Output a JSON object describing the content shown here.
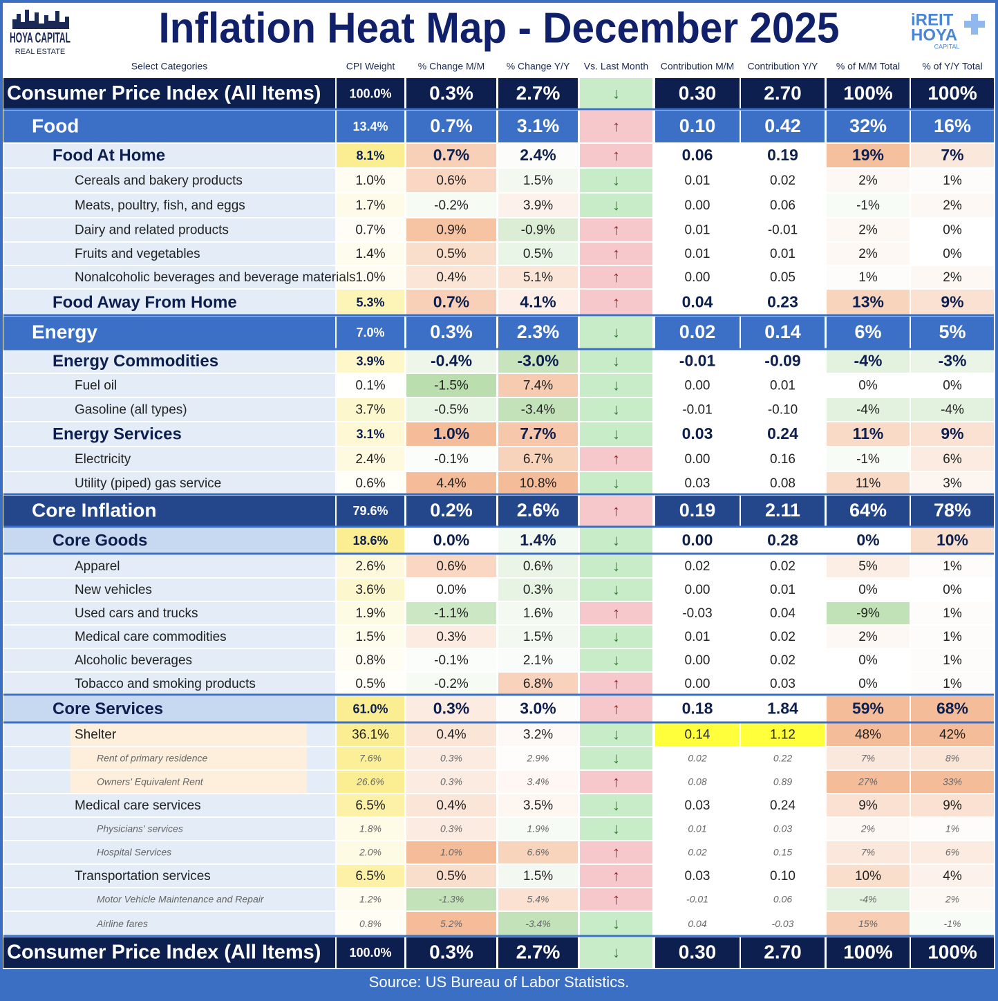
{
  "header": {
    "title": "Inflation Heat Map - December 2025",
    "logo_left": [
      "HOYA CAPITAL",
      "REAL ESTATE"
    ],
    "logo_right": [
      "iREIT",
      "HOYA",
      "CAPITAL"
    ]
  },
  "table": {
    "columns": [
      "Select Categories",
      "CPI Weight",
      "% Change M/M",
      "% Change Y/Y",
      "Vs. Last Month",
      "Contribution M/M",
      "Contribution Y/Y",
      "% of M/M Total",
      "% of Y/Y Total"
    ],
    "rows": [
      {
        "label": "Consumer Price Index (All Items)",
        "cells": [
          "100.0%",
          "0.3%",
          "2.7%",
          "↓",
          "0.30",
          "2.70",
          "100%",
          "100%"
        ]
      },
      {
        "label": "Food",
        "cells": [
          "13.4%",
          "0.7%",
          "3.1%",
          "↑",
          "0.10",
          "0.42",
          "32%",
          "16%"
        ]
      },
      {
        "label": "Food At Home",
        "cells": [
          "8.1%",
          "0.7%",
          "2.4%",
          "↑",
          "0.06",
          "0.19",
          "19%",
          "7%"
        ]
      },
      {
        "label": "Cereals and bakery products",
        "cells": [
          "1.0%",
          "0.6%",
          "1.5%",
          "↓",
          "0.01",
          "0.02",
          "2%",
          "1%"
        ]
      },
      {
        "label": "Meats, poultry, fish, and eggs",
        "cells": [
          "1.7%",
          "-0.2%",
          "3.9%",
          "↓",
          "0.00",
          "0.06",
          "-1%",
          "2%"
        ]
      },
      {
        "label": "Dairy and related products",
        "cells": [
          "0.7%",
          "0.9%",
          "-0.9%",
          "↑",
          "0.01",
          "-0.01",
          "2%",
          "0%"
        ]
      },
      {
        "label": "Fruits and vegetables",
        "cells": [
          "1.4%",
          "0.5%",
          "0.5%",
          "↑",
          "0.01",
          "0.01",
          "2%",
          "0%"
        ]
      },
      {
        "label": "Nonalcoholic beverages and beverage materials",
        "cells": [
          "1.0%",
          "0.4%",
          "5.1%",
          "↑",
          "0.00",
          "0.05",
          "1%",
          "2%"
        ]
      },
      {
        "label": "Food Away From Home",
        "cells": [
          "5.3%",
          "0.7%",
          "4.1%",
          "↑",
          "0.04",
          "0.23",
          "13%",
          "9%"
        ]
      },
      {
        "label": "Energy",
        "cells": [
          "7.0%",
          "0.3%",
          "2.3%",
          "↓",
          "0.02",
          "0.14",
          "6%",
          "5%"
        ]
      },
      {
        "label": "Energy Commodities",
        "cells": [
          "3.9%",
          "-0.4%",
          "-3.0%",
          "↓",
          "-0.01",
          "-0.09",
          "-4%",
          "-3%"
        ]
      },
      {
        "label": "Fuel oil",
        "cells": [
          "0.1%",
          "-1.5%",
          "7.4%",
          "↓",
          "0.00",
          "0.01",
          "0%",
          "0%"
        ]
      },
      {
        "label": "Gasoline (all types)",
        "cells": [
          "3.7%",
          "-0.5%",
          "-3.4%",
          "↓",
          "-0.01",
          "-0.10",
          "-4%",
          "-4%"
        ]
      },
      {
        "label": "Energy Services",
        "cells": [
          "3.1%",
          "1.0%",
          "7.7%",
          "↓",
          "0.03",
          "0.24",
          "11%",
          "9%"
        ]
      },
      {
        "label": "Electricity",
        "cells": [
          "2.4%",
          "-0.1%",
          "6.7%",
          "↑",
          "0.00",
          "0.16",
          "-1%",
          "6%"
        ]
      },
      {
        "label": "Utility (piped) gas service",
        "cells": [
          "0.6%",
          "4.4%",
          "10.8%",
          "↓",
          "0.03",
          "0.08",
          "11%",
          "3%"
        ]
      },
      {
        "label": "Core Inflation",
        "cells": [
          "79.6%",
          "0.2%",
          "2.6%",
          "↑",
          "0.19",
          "2.11",
          "64%",
          "78%"
        ]
      },
      {
        "label": "Core Goods",
        "cells": [
          "18.6%",
          "0.0%",
          "1.4%",
          "↓",
          "0.00",
          "0.28",
          "0%",
          "10%"
        ]
      },
      {
        "label": "Apparel",
        "cells": [
          "2.6%",
          "0.6%",
          "0.6%",
          "↓",
          "0.02",
          "0.02",
          "5%",
          "1%"
        ]
      },
      {
        "label": "New vehicles",
        "cells": [
          "3.6%",
          "0.0%",
          "0.3%",
          "↓",
          "0.00",
          "0.01",
          "0%",
          "0%"
        ]
      },
      {
        "label": "Used cars and trucks",
        "cells": [
          "1.9%",
          "-1.1%",
          "1.6%",
          "↑",
          "-0.03",
          "0.04",
          "-9%",
          "1%"
        ]
      },
      {
        "label": "Medical care commodities",
        "cells": [
          "1.5%",
          "0.3%",
          "1.5%",
          "↓",
          "0.01",
          "0.02",
          "2%",
          "1%"
        ]
      },
      {
        "label": "Alcoholic beverages",
        "cells": [
          "0.8%",
          "-0.1%",
          "2.1%",
          "↓",
          "0.00",
          "0.02",
          "0%",
          "1%"
        ]
      },
      {
        "label": "Tobacco and smoking products",
        "cells": [
          "0.5%",
          "-0.2%",
          "6.8%",
          "↑",
          "0.00",
          "0.03",
          "0%",
          "1%"
        ]
      },
      {
        "label": "Core Services",
        "cells": [
          "61.0%",
          "0.3%",
          "3.0%",
          "↑",
          "0.18",
          "1.84",
          "59%",
          "68%"
        ]
      },
      {
        "label": "Shelter",
        "cells": [
          "36.1%",
          "0.4%",
          "3.2%",
          "↓",
          "0.14",
          "1.12",
          "48%",
          "42%"
        ]
      },
      {
        "label": "Rent of primary residence",
        "cells": [
          "7.6%",
          "0.3%",
          "2.9%",
          "↓",
          "0.02",
          "0.22",
          "7%",
          "8%"
        ]
      },
      {
        "label": "Owners' Equivalent Rent",
        "cells": [
          "26.6%",
          "0.3%",
          "3.4%",
          "↑",
          "0.08",
          "0.89",
          "27%",
          "33%"
        ]
      },
      {
        "label": "Medical care services",
        "cells": [
          "6.5%",
          "0.4%",
          "3.5%",
          "↓",
          "0.03",
          "0.24",
          "9%",
          "9%"
        ]
      },
      {
        "label": "Physicians' services",
        "cells": [
          "1.8%",
          "0.3%",
          "1.9%",
          "↓",
          "0.01",
          "0.03",
          "2%",
          "1%"
        ]
      },
      {
        "label": "Hospital Services",
        "cells": [
          "2.0%",
          "1.0%",
          "6.6%",
          "↑",
          "0.02",
          "0.15",
          "7%",
          "6%"
        ]
      },
      {
        "label": "Transportation services",
        "cells": [
          "6.5%",
          "0.5%",
          "1.5%",
          "↑",
          "0.03",
          "0.10",
          "10%",
          "4%"
        ]
      },
      {
        "label": "Motor Vehicle Maintenance and Repair",
        "cells": [
          "1.2%",
          "-1.3%",
          "5.4%",
          "↑",
          "-0.01",
          "0.06",
          "-4%",
          "2%"
        ]
      },
      {
        "label": "Airline fares",
        "cells": [
          "0.8%",
          "5.2%",
          "-3.4%",
          "↓",
          "0.04",
          "-0.03",
          "15%",
          "-1%"
        ]
      },
      {
        "label": "Consumer Price Index (All Items)",
        "cells": [
          "100.0%",
          "0.3%",
          "2.7%",
          "↓",
          "0.30",
          "2.70",
          "100%",
          "100%"
        ]
      }
    ]
  },
  "footer": {
    "source": "Source: US Bureau of Labor Statistics."
  }
}
